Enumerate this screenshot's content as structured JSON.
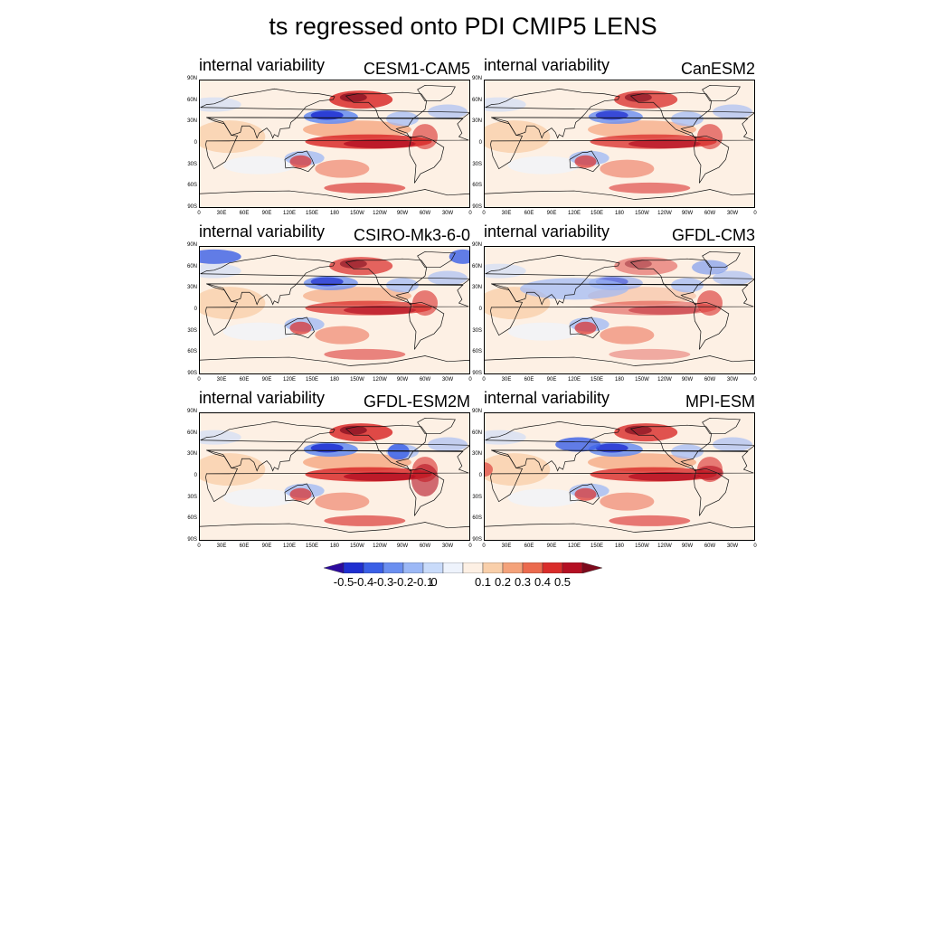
{
  "title": "ts regressed onto PDI CMIP5 LENS",
  "panels": [
    {
      "left_label": "internal variability",
      "right_label": "CESM1-CAM5"
    },
    {
      "left_label": "internal variability",
      "right_label": "CanESM2"
    },
    {
      "left_label": "internal variability",
      "right_label": "CSIRO-Mk3-6-0"
    },
    {
      "left_label": "internal variability",
      "right_label": "GFDL-CM3"
    },
    {
      "left_label": "internal variability",
      "right_label": "GFDL-ESM2M"
    },
    {
      "left_label": "internal variability",
      "right_label": "MPI-ESM"
    }
  ],
  "lat_labels": [
    "90N",
    "60N",
    "30N",
    "0",
    "30S",
    "60S",
    "90S"
  ],
  "lon_labels": [
    "0",
    "30E",
    "60E",
    "90E",
    "120E",
    "150E",
    "180",
    "150W",
    "120W",
    "90W",
    "60W",
    "30W",
    "0"
  ],
  "colorbar": {
    "labels": [
      "-0.5",
      "-0.4",
      "-0.3",
      "-0.2",
      "-0.1",
      "0",
      "0.1",
      "0.2",
      "0.3",
      "0.4",
      "0.5"
    ],
    "colors": [
      "#2c0a9e",
      "#1f2fd0",
      "#3a5fe6",
      "#6b8ff0",
      "#9cb8f6",
      "#c9dbfa",
      "#eef3fc",
      "#fdf0e4",
      "#f9cfaa",
      "#f4a27a",
      "#eb6a4e",
      "#d92c2a",
      "#b40f22",
      "#7d0a1c"
    ]
  }
}
